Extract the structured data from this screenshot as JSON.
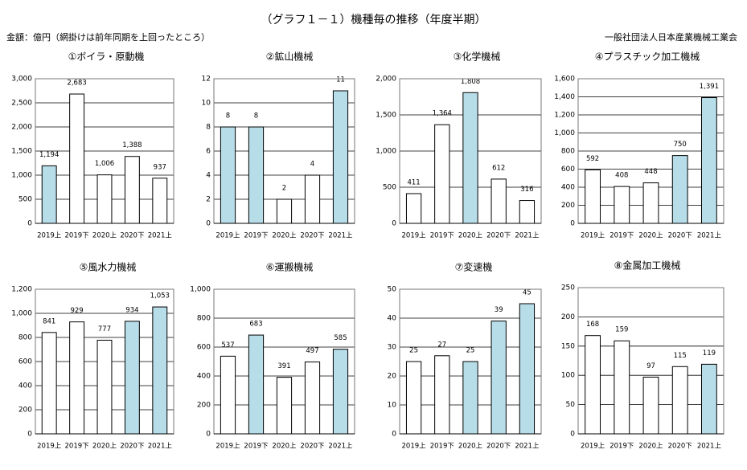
{
  "header": {
    "title": "（グラフ１－１）機種毎の推移（年度半期）",
    "unit_note": "金額：億円（網掛けは前年同期を上回ったところ）",
    "organization": "一般社団法人日本産業機械工業会"
  },
  "colors": {
    "highlight": "#b7dde8",
    "plain": "#ffffff",
    "stroke": "#000000"
  },
  "chart_data": [
    {
      "type": "bar",
      "title": "①ボイラ・原動機",
      "categories": [
        "2019上",
        "2019下",
        "2020上",
        "2020下",
        "2021上"
      ],
      "values": [
        1194,
        2683,
        1006,
        1388,
        937
      ],
      "value_labels": [
        "1,194",
        "2,683",
        "1,006",
        "1,388",
        "937"
      ],
      "highlighted": [
        true,
        false,
        false,
        false,
        false
      ],
      "ylim": [
        0,
        3000
      ],
      "yticks": [
        "0",
        "500",
        "1,000",
        "1,500",
        "2,000",
        "2,500",
        "3,000"
      ],
      "grid": true
    },
    {
      "type": "bar",
      "title": "②鉱山機械",
      "categories": [
        "2019上",
        "2019下",
        "2020上",
        "2020下",
        "2021上"
      ],
      "values": [
        8,
        8,
        2,
        4,
        11
      ],
      "value_labels": [
        "8",
        "8",
        "2",
        "4",
        "11"
      ],
      "highlighted": [
        true,
        true,
        false,
        false,
        true
      ],
      "ylim": [
        0,
        12
      ],
      "yticks": [
        "0",
        "2",
        "4",
        "6",
        "8",
        "10",
        "12"
      ],
      "grid": true
    },
    {
      "type": "bar",
      "title": "③化学機械",
      "categories": [
        "2019上",
        "2019下",
        "2020上",
        "2020下",
        "2021上"
      ],
      "values": [
        411,
        1364,
        1808,
        612,
        316
      ],
      "value_labels": [
        "411",
        "1,364",
        "1,808",
        "612",
        "316"
      ],
      "highlighted": [
        false,
        false,
        true,
        false,
        false
      ],
      "ylim": [
        0,
        2000
      ],
      "yticks": [
        "0",
        "500",
        "1,000",
        "1,500",
        "2,000"
      ],
      "grid": true
    },
    {
      "type": "bar",
      "title": "④プラスチック加工機械",
      "categories": [
        "2019上",
        "2019下",
        "2020上",
        "2020下",
        "2021上"
      ],
      "values": [
        592,
        408,
        448,
        750,
        1391
      ],
      "value_labels": [
        "592",
        "408",
        "448",
        "750",
        "1,391"
      ],
      "highlighted": [
        false,
        false,
        false,
        true,
        true
      ],
      "ylim": [
        0,
        1600
      ],
      "yticks": [
        "0",
        "200",
        "400",
        "600",
        "800",
        "1,000",
        "1,200",
        "1,400",
        "1,600"
      ],
      "grid": true
    },
    {
      "type": "bar",
      "title": "⑤風水力機械",
      "categories": [
        "2019上",
        "2019下",
        "2020上",
        "2020下",
        "2021上"
      ],
      "values": [
        841,
        929,
        777,
        934,
        1053
      ],
      "value_labels": [
        "841",
        "929",
        "777",
        "934",
        "1,053"
      ],
      "highlighted": [
        false,
        false,
        false,
        true,
        true
      ],
      "ylim": [
        0,
        1200
      ],
      "yticks": [
        "0",
        "200",
        "400",
        "600",
        "800",
        "1,000",
        "1,200"
      ],
      "grid": true
    },
    {
      "type": "bar",
      "title": "⑥運搬機械",
      "categories": [
        "2019上",
        "2019下",
        "2020上",
        "2020下",
        "2021上"
      ],
      "values": [
        537,
        683,
        391,
        497,
        585
      ],
      "value_labels": [
        "537",
        "683",
        "391",
        "497",
        "585"
      ],
      "highlighted": [
        false,
        true,
        false,
        false,
        true
      ],
      "ylim": [
        0,
        1000
      ],
      "yticks": [
        "0",
        "200",
        "400",
        "600",
        "800",
        "1,000"
      ],
      "grid": true
    },
    {
      "type": "bar",
      "title": "⑦変速機",
      "categories": [
        "2019上",
        "2019下",
        "2020上",
        "2020下",
        "2021上"
      ],
      "values": [
        25,
        27,
        25,
        39,
        45
      ],
      "value_labels": [
        "25",
        "27",
        "25",
        "39",
        "45"
      ],
      "highlighted": [
        false,
        false,
        true,
        true,
        true
      ],
      "ylim": [
        0,
        50
      ],
      "yticks": [
        "0",
        "10",
        "20",
        "30",
        "40",
        "50"
      ],
      "grid": true
    },
    {
      "type": "bar",
      "title": "⑧金属加工機械",
      "categories": [
        "2019上",
        "2019下",
        "2020上",
        "2020下",
        "2021上"
      ],
      "values": [
        168,
        159,
        97,
        115,
        119
      ],
      "value_labels": [
        "168",
        "159",
        "97",
        "115",
        "119"
      ],
      "highlighted": [
        false,
        false,
        false,
        false,
        true
      ],
      "ylim": [
        0,
        250
      ],
      "yticks": [
        "0",
        "50",
        "100",
        "150",
        "200",
        "250"
      ],
      "grid": true
    }
  ]
}
